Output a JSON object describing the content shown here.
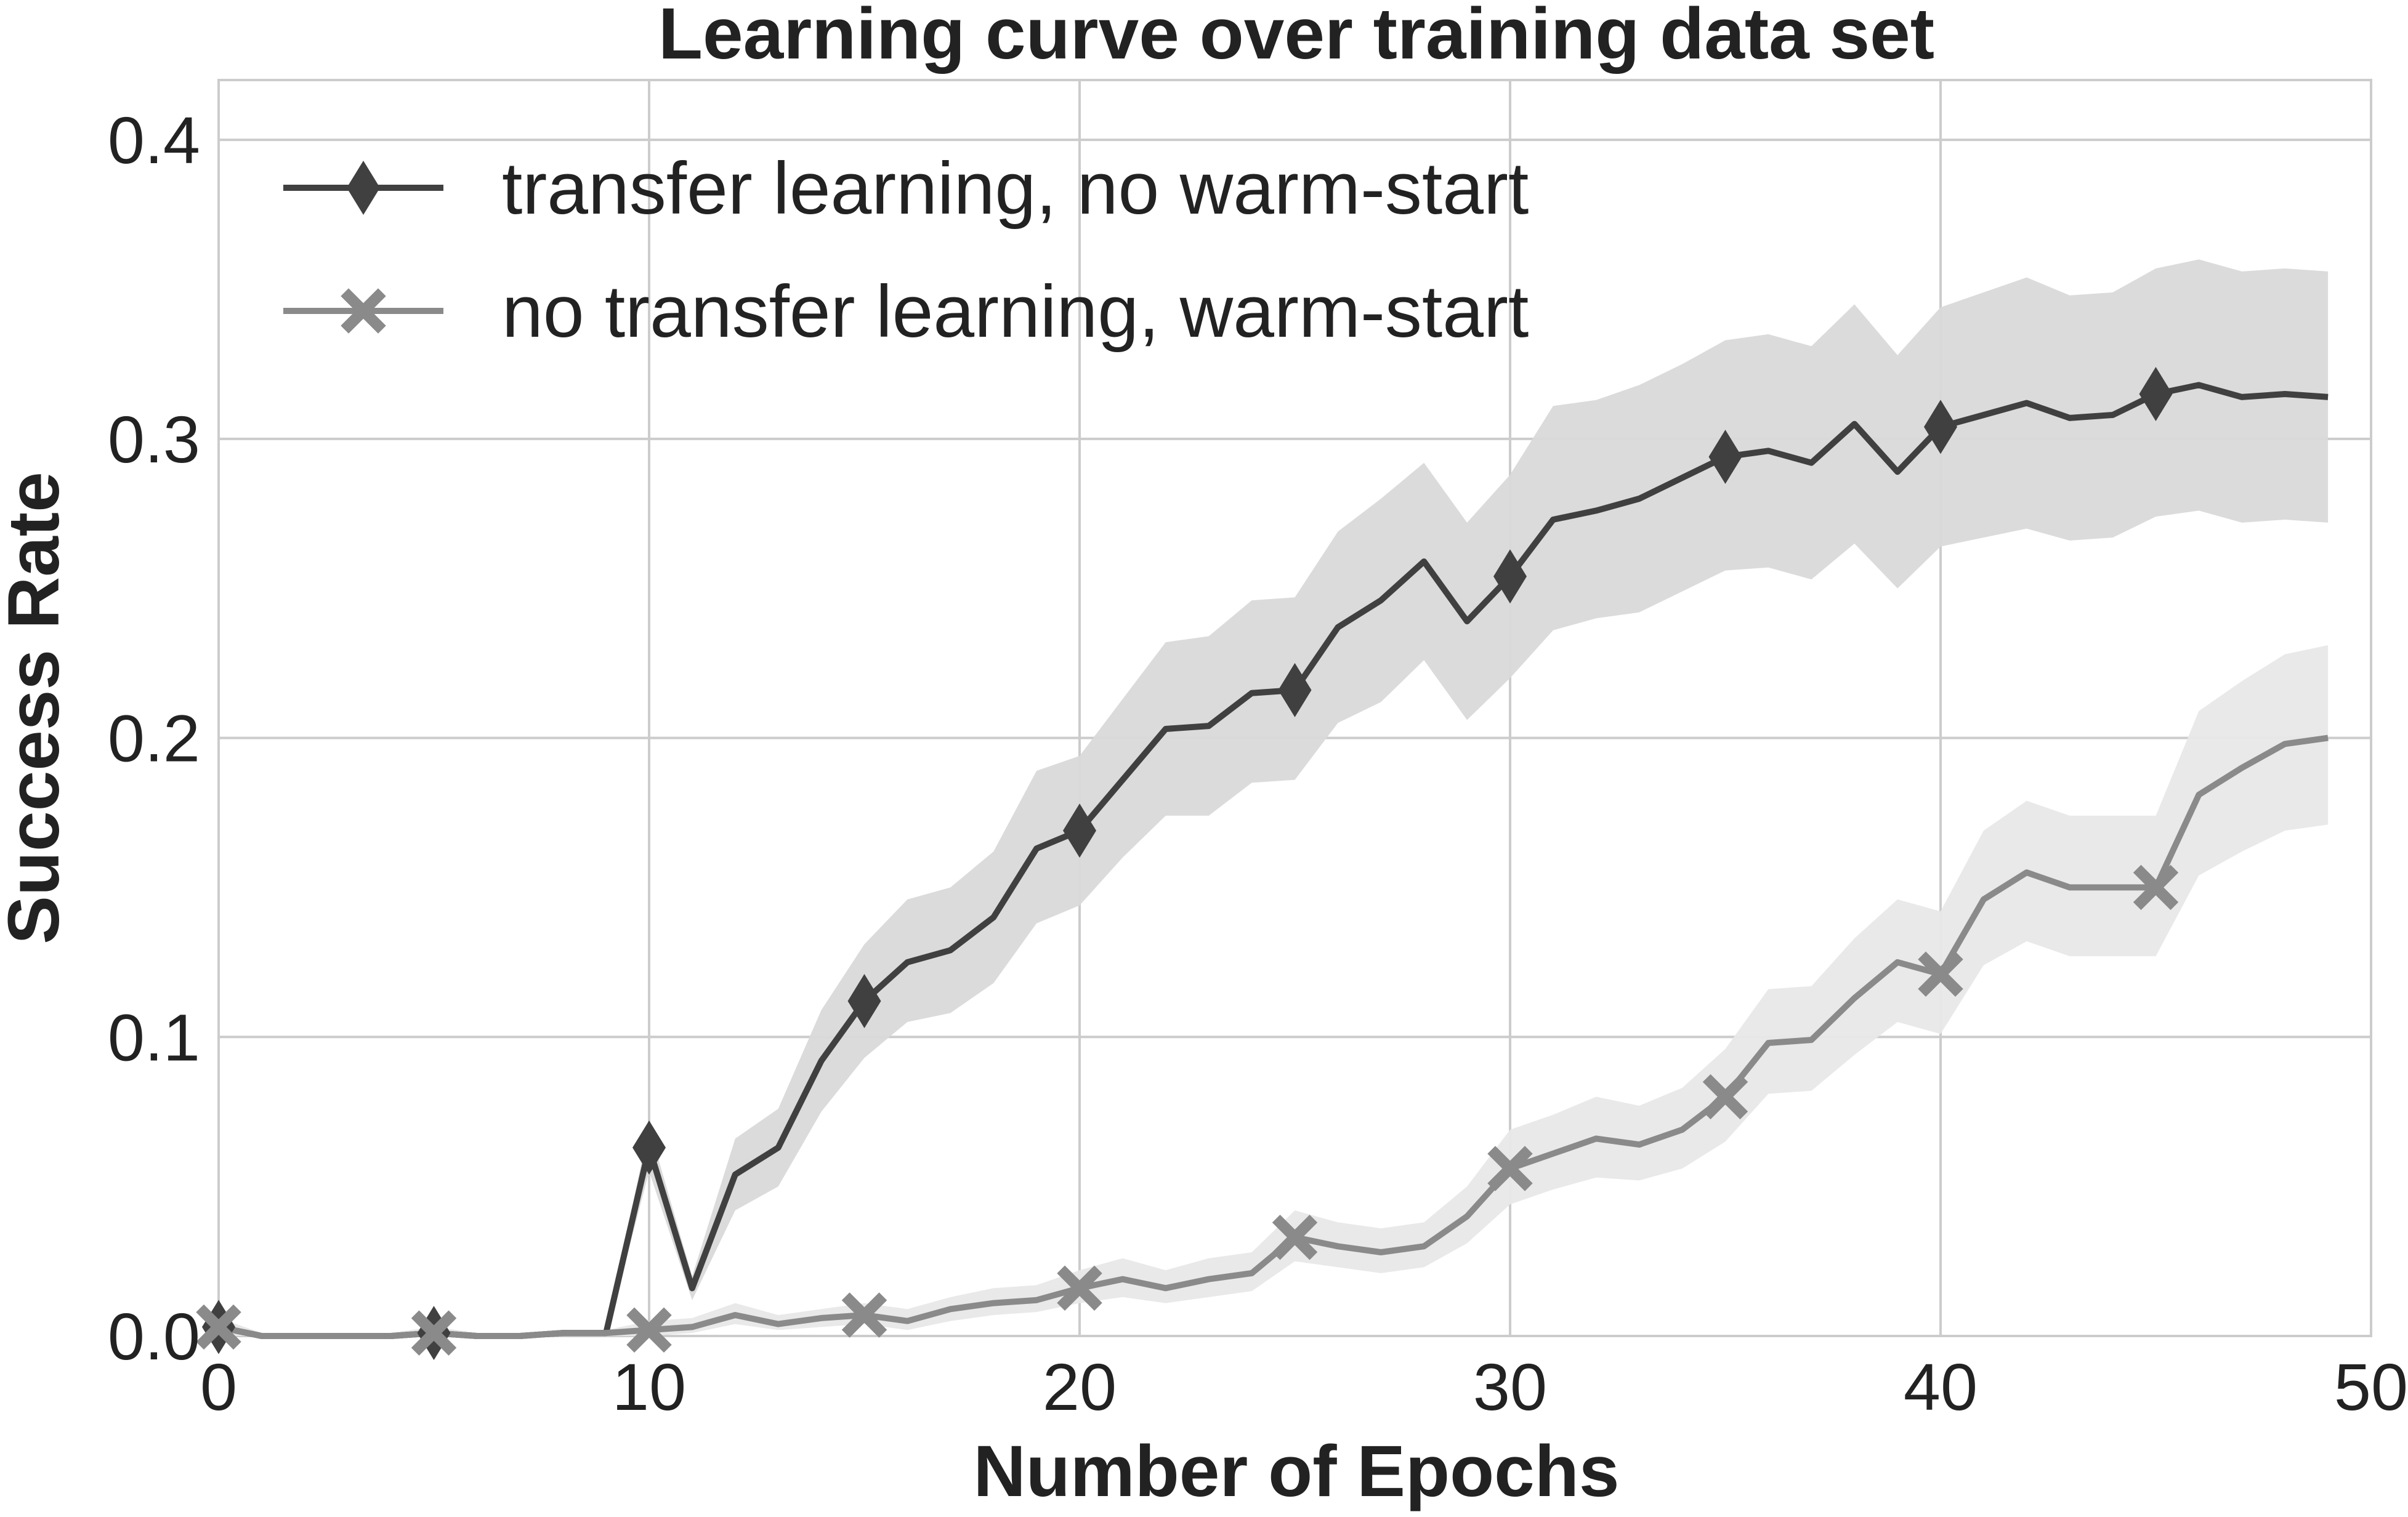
{
  "chart_data": {
    "type": "line",
    "title": "Learning curve over training data set",
    "xlabel": "Number of Epochs",
    "ylabel": "Success Rate",
    "xlim": [
      0,
      50
    ],
    "ylim": [
      0,
      0.42
    ],
    "xticks": [
      "0",
      "10",
      "20",
      "30",
      "40",
      "50"
    ],
    "yticks": [
      "0.0",
      "0.1",
      "0.2",
      "0.3",
      "0.4"
    ],
    "grid": true,
    "legend_position": "top-left",
    "x": [
      0,
      1,
      2,
      3,
      4,
      5,
      6,
      7,
      8,
      9,
      10,
      11,
      12,
      13,
      14,
      15,
      16,
      17,
      18,
      19,
      20,
      21,
      22,
      23,
      24,
      25,
      26,
      27,
      28,
      29,
      30,
      31,
      32,
      33,
      34,
      35,
      36,
      37,
      38,
      39,
      40,
      41,
      42,
      43,
      44,
      45,
      46,
      47,
      48,
      49
    ],
    "series": [
      {
        "name": "transfer learning, no warm-start",
        "color": "#404040",
        "band_color": "#d9d9d9",
        "marker": "diamond",
        "marker_every": 5,
        "values": [
          0.003,
          0.0,
          0.0,
          0.0,
          0.0,
          0.001,
          0.0,
          0.0,
          0.001,
          0.001,
          0.063,
          0.016,
          0.054,
          0.063,
          0.092,
          0.112,
          0.125,
          0.129,
          0.14,
          0.163,
          0.169,
          0.186,
          0.203,
          0.204,
          0.215,
          0.216,
          0.237,
          0.246,
          0.259,
          0.239,
          0.254,
          0.273,
          0.276,
          0.28,
          0.287,
          0.294,
          0.296,
          0.292,
          0.305,
          0.289,
          0.304,
          0.308,
          0.312,
          0.307,
          0.308,
          0.315,
          0.318,
          0.314,
          0.315,
          0.314
        ],
        "lower": [
          0.0,
          0.0,
          0.0,
          0.0,
          0.0,
          0.0,
          0.0,
          0.0,
          0.0,
          0.0,
          0.055,
          0.012,
          0.042,
          0.05,
          0.075,
          0.093,
          0.105,
          0.108,
          0.118,
          0.138,
          0.144,
          0.16,
          0.174,
          0.174,
          0.185,
          0.186,
          0.205,
          0.212,
          0.226,
          0.206,
          0.22,
          0.236,
          0.24,
          0.242,
          0.249,
          0.256,
          0.257,
          0.253,
          0.265,
          0.25,
          0.264,
          0.267,
          0.27,
          0.266,
          0.267,
          0.274,
          0.276,
          0.272,
          0.273,
          0.272
        ],
        "upper": [
          0.006,
          0.001,
          0.001,
          0.001,
          0.001,
          0.003,
          0.001,
          0.001,
          0.002,
          0.002,
          0.07,
          0.02,
          0.066,
          0.076,
          0.109,
          0.131,
          0.146,
          0.15,
          0.162,
          0.189,
          0.194,
          0.213,
          0.232,
          0.234,
          0.246,
          0.247,
          0.269,
          0.28,
          0.292,
          0.272,
          0.288,
          0.311,
          0.313,
          0.318,
          0.325,
          0.333,
          0.335,
          0.331,
          0.345,
          0.328,
          0.344,
          0.349,
          0.354,
          0.348,
          0.349,
          0.357,
          0.36,
          0.356,
          0.357,
          0.356
        ]
      },
      {
        "name": "no transfer learning, warm-start",
        "color": "#8a8a8a",
        "band_color": "#e8e8e8",
        "marker": "x",
        "marker_every": 5,
        "values": [
          0.003,
          0.0,
          0.0,
          0.0,
          0.0,
          0.001,
          0.0,
          0.0,
          0.001,
          0.001,
          0.002,
          0.003,
          0.007,
          0.004,
          0.006,
          0.007,
          0.005,
          0.009,
          0.011,
          0.012,
          0.016,
          0.019,
          0.016,
          0.019,
          0.021,
          0.033,
          0.03,
          0.028,
          0.03,
          0.04,
          0.056,
          0.061,
          0.066,
          0.064,
          0.069,
          0.08,
          0.098,
          0.099,
          0.113,
          0.125,
          0.121,
          0.146,
          0.155,
          0.15,
          0.15,
          0.15,
          0.181,
          0.19,
          0.198,
          0.2
        ],
        "lower": [
          0.0,
          0.0,
          0.0,
          0.0,
          0.0,
          0.0,
          0.0,
          0.0,
          0.0,
          0.0,
          0.0,
          0.001,
          0.004,
          0.002,
          0.003,
          0.004,
          0.002,
          0.005,
          0.007,
          0.008,
          0.011,
          0.013,
          0.011,
          0.013,
          0.015,
          0.025,
          0.023,
          0.021,
          0.023,
          0.031,
          0.044,
          0.049,
          0.053,
          0.052,
          0.056,
          0.065,
          0.081,
          0.082,
          0.094,
          0.105,
          0.101,
          0.124,
          0.132,
          0.127,
          0.127,
          0.127,
          0.154,
          0.162,
          0.169,
          0.171
        ],
        "upper": [
          0.006,
          0.001,
          0.001,
          0.001,
          0.001,
          0.003,
          0.001,
          0.001,
          0.002,
          0.002,
          0.005,
          0.006,
          0.011,
          0.007,
          0.009,
          0.011,
          0.009,
          0.013,
          0.016,
          0.017,
          0.022,
          0.026,
          0.022,
          0.026,
          0.028,
          0.042,
          0.038,
          0.036,
          0.038,
          0.05,
          0.069,
          0.074,
          0.08,
          0.077,
          0.083,
          0.096,
          0.116,
          0.117,
          0.133,
          0.146,
          0.142,
          0.169,
          0.179,
          0.174,
          0.174,
          0.174,
          0.209,
          0.219,
          0.228,
          0.231
        ]
      }
    ]
  }
}
